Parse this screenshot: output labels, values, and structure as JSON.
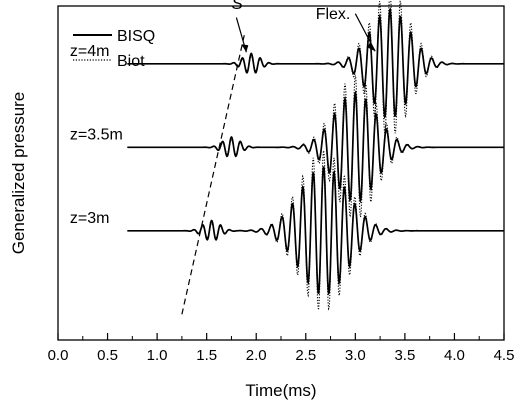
{
  "chart_data": {
    "type": "line",
    "title": "",
    "xlabel": "Time(ms)",
    "ylabel": "Generalized pressure",
    "xlim": [
      0.0,
      4.5
    ],
    "ylim": [
      -0.3,
      4.9
    ],
    "grid": false,
    "x_ticks": [
      "0.0",
      "0.5",
      "1.0",
      "1.5",
      "2.0",
      "2.5",
      "3.0",
      "3.5",
      "4.0",
      "4.5"
    ],
    "legend": {
      "placement": "top-left",
      "entries": [
        {
          "name": "BISQ",
          "style": "solid"
        },
        {
          "name": "Biot",
          "style": "dotted"
        }
      ]
    },
    "traces": [
      {
        "label": "z=4m",
        "baseline": 4,
        "wavelets": [
          {
            "center": 1.95,
            "amp": 0.16,
            "width": 0.12,
            "freq": 11.0,
            "biot_amp": 0.12
          },
          {
            "center": 3.35,
            "amp": 0.85,
            "width": 0.28,
            "freq": 9.5,
            "biot_amp": 1.12
          }
        ]
      },
      {
        "label": "z=3.5m",
        "baseline": 2.7,
        "wavelets": [
          {
            "center": 1.75,
            "amp": 0.16,
            "width": 0.12,
            "freq": 11.0,
            "biot_amp": 0.12
          },
          {
            "center": 3.0,
            "amp": 0.85,
            "width": 0.3,
            "freq": 9.5,
            "biot_amp": 1.12
          }
        ]
      },
      {
        "label": "z=3m",
        "baseline": 1.4,
        "wavelets": [
          {
            "center": 1.55,
            "amp": 0.16,
            "width": 0.12,
            "freq": 11.0,
            "biot_amp": 0.12
          },
          {
            "center": 2.68,
            "amp": 1.0,
            "width": 0.34,
            "freq": 9.5,
            "biot_amp": 1.25
          }
        ]
      }
    ],
    "annotations": [
      {
        "text": "S",
        "style": "italic",
        "line": "dashed",
        "from": [
          1.25,
          0.1
        ],
        "to": [
          1.88,
          4.45
        ]
      },
      {
        "text": "Flex.",
        "arrow_to": [
          3.2,
          4.6
        ]
      }
    ],
    "colors": {
      "line": "#000000",
      "background": "#ffffff"
    }
  }
}
